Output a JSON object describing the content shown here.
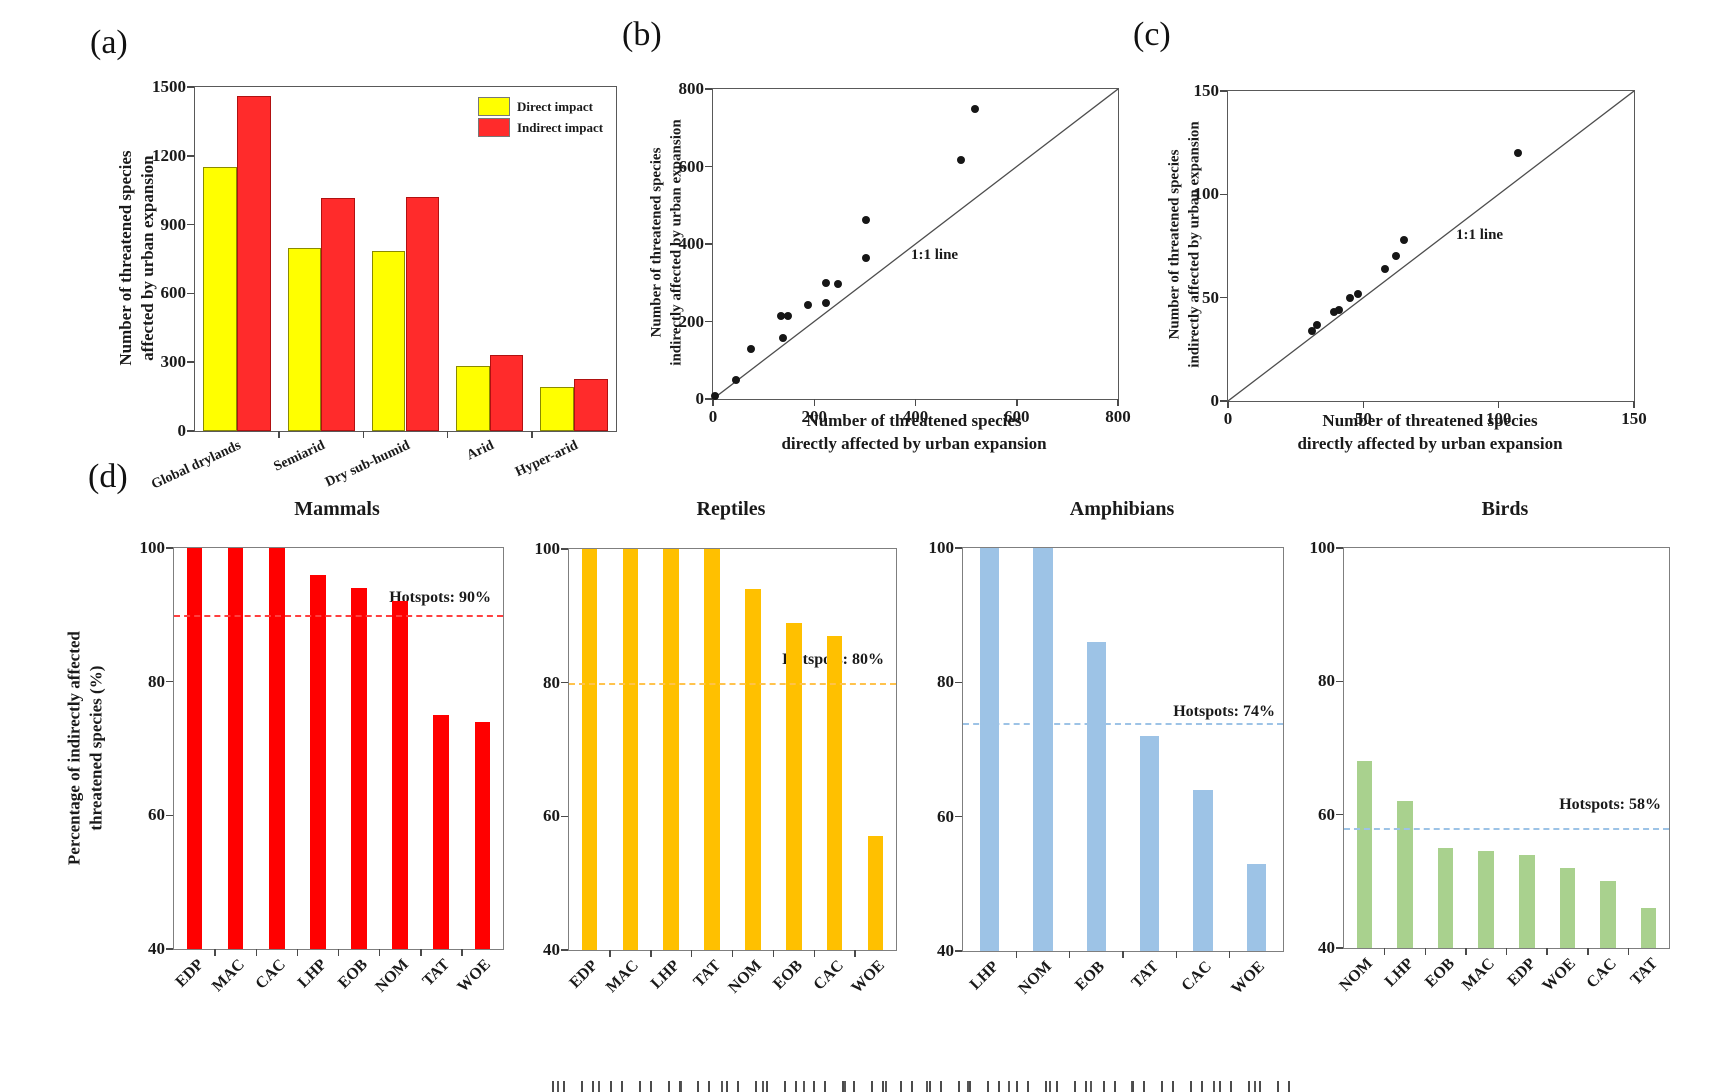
{
  "figure": {
    "background": "#ffffff",
    "panel_letters": {
      "a": "(a)",
      "b": "(b)",
      "c": "(c)",
      "d": "(d)"
    }
  },
  "panel_a": {
    "ylabel_line1": "Number of threatened species",
    "ylabel_line2": "affected by urban expansion",
    "legend": [
      {
        "label": "Direct impact",
        "color": "#ffff00"
      },
      {
        "label": "Indirect impact",
        "color": "#ff2b2b"
      }
    ]
  },
  "panel_b": {
    "ylabel_line1": "Number of threatened species",
    "ylabel_line2": "indirectly affected by urban expansion",
    "xlabel_line1": "Number of threatened species",
    "xlabel_line2": "directly affected by urban expansion",
    "annotation": "1:1 line"
  },
  "panel_c": {
    "ylabel_line1": "Number of threatened species",
    "ylabel_line2": "indirectly affected by urban expansion",
    "xlabel_line1": "Number of threatened species",
    "xlabel_line2": "directly affected by urban expansion",
    "annotation": "1:1 line"
  },
  "panel_d": {
    "ylabel_line1": "Percentage of indirectly affected",
    "ylabel_line2": "threatened species (%)"
  },
  "chart_data": [
    {
      "id": "a",
      "type": "bar",
      "title": "",
      "categories": [
        "Global drylands",
        "Semiarid",
        "Dry sub-humid",
        "Arid",
        "Hyper-arid"
      ],
      "series": [
        {
          "name": "Direct impact",
          "color": "#ffff00",
          "edge": "#8a8a00",
          "values": [
            1150,
            800,
            785,
            285,
            190
          ]
        },
        {
          "name": "Indirect impact",
          "color": "#ff2b2b",
          "edge": "#b01111",
          "values": [
            1460,
            1015,
            1020,
            330,
            225
          ]
        }
      ],
      "ylabel": "Number of threatened species affected by urban expansion",
      "ylim": [
        0,
        1500
      ],
      "yticks": [
        0,
        300,
        600,
        900,
        1200,
        1500
      ],
      "grid": false,
      "legend_position": "top-right",
      "label_angle": -25,
      "label_size": 14,
      "bar_frac": 0.4
    },
    {
      "id": "b",
      "type": "scatter",
      "xlabel": "Number of threatened species directly affected by urban expansion",
      "ylabel": "Number of threatened species indirectly affected by urban expansion",
      "annotation": "1:1 line",
      "line_1_1": true,
      "grid": false,
      "xlim": [
        0,
        800
      ],
      "ylim": [
        0,
        800
      ],
      "xticks": [
        0,
        200,
        400,
        600,
        800
      ],
      "yticks": [
        0,
        200,
        400,
        600,
        800
      ],
      "points": [
        [
          3,
          9
        ],
        [
          46,
          48
        ],
        [
          75,
          130
        ],
        [
          138,
          157
        ],
        [
          135,
          215
        ],
        [
          148,
          213
        ],
        [
          187,
          243
        ],
        [
          223,
          248
        ],
        [
          223,
          300
        ],
        [
          246,
          296
        ],
        [
          302,
          365
        ],
        [
          302,
          461
        ],
        [
          489,
          617
        ],
        [
          518,
          748
        ]
      ]
    },
    {
      "id": "c",
      "type": "scatter",
      "xlabel": "Number of threatened species directly affected by urban expansion",
      "ylabel": "Number of threatened species indirectly affected by urban expansion",
      "annotation": "1:1 line",
      "line_1_1": true,
      "grid": false,
      "xlim": [
        0,
        150
      ],
      "ylim": [
        0,
        150
      ],
      "xticks": [
        0,
        50,
        100,
        150
      ],
      "yticks": [
        0,
        50,
        100,
        150
      ],
      "points": [
        [
          31,
          34
        ],
        [
          33,
          37
        ],
        [
          39,
          43
        ],
        [
          41,
          44
        ],
        [
          45,
          50
        ],
        [
          48,
          52
        ],
        [
          58,
          64
        ],
        [
          62,
          70
        ],
        [
          65,
          78
        ],
        [
          107,
          120
        ]
      ]
    },
    {
      "id": "mammals",
      "type": "bar",
      "title": "Mammals",
      "categories": [
        "EDP",
        "MAC",
        "CAC",
        "LHP",
        "EOB",
        "NOM",
        "TAT",
        "WOE"
      ],
      "values": [
        100,
        100,
        100,
        96,
        94,
        92,
        75,
        74
      ],
      "bar_color": "#ff0000",
      "ylim": [
        40,
        100
      ],
      "yticks": [
        40,
        60,
        80,
        100
      ],
      "grid": false,
      "hotspot": {
        "label": "Hotspots: 90%",
        "value": 90,
        "line_color": "#ff4040"
      },
      "label_angle": -45,
      "label_size": 16,
      "bar_frac": 0.38
    },
    {
      "id": "reptiles",
      "type": "bar",
      "title": "Reptiles",
      "categories": [
        "EDP",
        "MAC",
        "LHP",
        "TAT",
        "NOM",
        "EOB",
        "CAC",
        "WOE"
      ],
      "values": [
        100,
        100,
        100,
        100,
        94,
        89,
        87,
        57
      ],
      "bar_color": "#ffc000",
      "ylim": [
        40,
        100
      ],
      "yticks": [
        40,
        60,
        80,
        100
      ],
      "grid": false,
      "hotspot": {
        "label": "Hotspots: 80%",
        "value": 80,
        "line_color": "#ffc34d"
      },
      "label_angle": -45,
      "label_size": 16,
      "bar_frac": 0.38
    },
    {
      "id": "amphibians",
      "type": "bar",
      "title": "Amphibians",
      "categories": [
        "LHP",
        "NOM",
        "EOB",
        "TAT",
        "CAC",
        "WOE"
      ],
      "values": [
        100,
        100,
        86,
        72,
        64,
        53
      ],
      "bar_color": "#9dc3e6",
      "ylim": [
        40,
        100
      ],
      "yticks": [
        40,
        60,
        80,
        100
      ],
      "grid": false,
      "hotspot": {
        "label": "Hotspots: 74%",
        "value": 74,
        "line_color": "#9dc3e6"
      },
      "label_angle": -45,
      "label_size": 16,
      "bar_frac": 0.36
    },
    {
      "id": "birds",
      "type": "bar",
      "title": "Birds",
      "categories": [
        "NOM",
        "LHP",
        "EOB",
        "MAC",
        "EDP",
        "WOE",
        "CAC",
        "TAT"
      ],
      "values": [
        68,
        62,
        55,
        54.5,
        54,
        52,
        50,
        46
      ],
      "bar_color": "#a9d18e",
      "ylim": [
        40,
        100
      ],
      "yticks": [
        40,
        60,
        80,
        100
      ],
      "grid": false,
      "hotspot": {
        "label": "Hotspots: 58%",
        "value": 58,
        "line_color": "#9dc3e6"
      },
      "label_angle": -45,
      "label_size": 16,
      "bar_frac": 0.38
    }
  ]
}
